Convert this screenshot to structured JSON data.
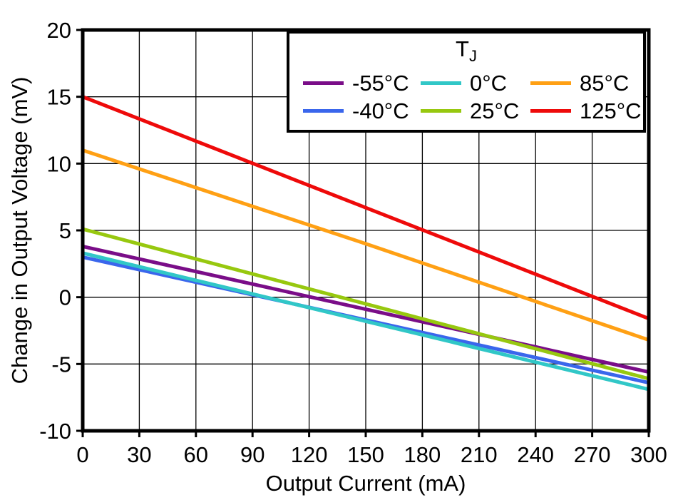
{
  "chart_data": {
    "type": "line",
    "title": "",
    "xlabel": "Output Current (mA)",
    "ylabel": "Change in Output Voltage (mV)",
    "xlim": [
      0,
      300
    ],
    "ylim": [
      -10,
      20
    ],
    "xticks": [
      0,
      30,
      60,
      90,
      120,
      150,
      180,
      210,
      240,
      270,
      300
    ],
    "yticks": [
      -10,
      -5,
      0,
      5,
      10,
      15,
      20
    ],
    "grid": true,
    "legend": {
      "title_main": "T",
      "title_sub": "J",
      "position": "top-right"
    },
    "series": [
      {
        "name": "-55°C",
        "color": "#7A0D88",
        "x": [
          0,
          150,
          300
        ],
        "y": [
          3.8,
          -0.9,
          -5.6
        ]
      },
      {
        "name": "-40°C",
        "color": "#3A66EC",
        "x": [
          0,
          150,
          300
        ],
        "y": [
          3.0,
          -1.7,
          -6.4
        ]
      },
      {
        "name": "0°C",
        "color": "#31C7C7",
        "x": [
          0,
          150,
          300
        ],
        "y": [
          3.3,
          -1.8,
          -6.9
        ]
      },
      {
        "name": "25°C",
        "color": "#97C80F",
        "x": [
          0,
          150,
          300
        ],
        "y": [
          5.1,
          -0.5,
          -6.1
        ]
      },
      {
        "name": "85°C",
        "color": "#FFA014",
        "x": [
          0,
          150,
          300
        ],
        "y": [
          11.0,
          4.0,
          -3.2
        ]
      },
      {
        "name": "125°C",
        "color": "#EE0A0A",
        "x": [
          0,
          150,
          300
        ],
        "y": [
          15.0,
          6.7,
          -1.6
        ]
      }
    ]
  }
}
